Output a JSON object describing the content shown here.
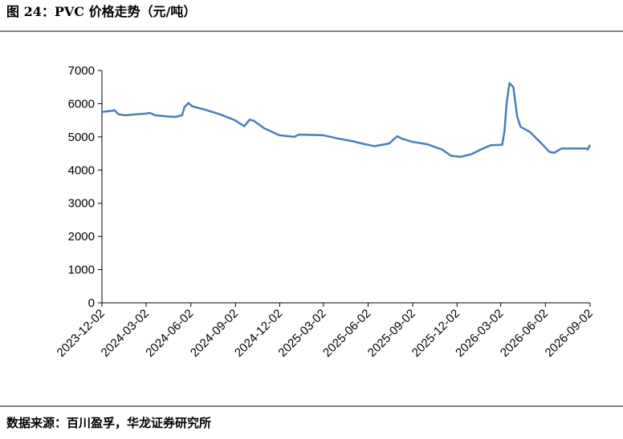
{
  "chart_data": {
    "type": "line",
    "title": "图 24：PVC 价格走势（元/吨）",
    "source": "数据来源：百川盈孚，华龙证券研究所",
    "x": [
      "2023-12-02",
      "2023-12-20",
      "2023-12-28",
      "2024-01-05",
      "2024-01-20",
      "2024-02-10",
      "2024-03-01",
      "2024-03-10",
      "2024-03-20",
      "2024-04-10",
      "2024-05-01",
      "2024-05-15",
      "2024-05-20",
      "2024-05-28",
      "2024-06-05",
      "2024-07-01",
      "2024-08-01",
      "2024-09-01",
      "2024-09-20",
      "2024-10-01",
      "2024-10-10",
      "2024-11-01",
      "2024-12-01",
      "2025-01-01",
      "2025-01-10",
      "2025-03-01",
      "2025-04-01",
      "2025-05-01",
      "2025-05-20",
      "2025-06-15",
      "2025-07-15",
      "2025-08-01",
      "2025-08-10",
      "2025-09-01",
      "2025-10-01",
      "2025-11-01",
      "2025-11-20",
      "2025-12-10",
      "2026-01-01",
      "2026-01-20",
      "2026-02-10",
      "2026-03-05",
      "2026-03-10",
      "2026-03-14",
      "2026-03-20",
      "2026-03-28",
      "2026-04-05",
      "2026-04-12",
      "2026-05-01",
      "2026-05-25",
      "2026-06-10",
      "2026-06-20",
      "2026-07-05",
      "2026-08-01",
      "2026-08-25",
      "2026-08-28",
      "2026-09-02"
    ],
    "series": [
      {
        "name": "PVC",
        "color": "#4a7ebb",
        "values": [
          5750,
          5780,
          5800,
          5680,
          5650,
          5680,
          5700,
          5720,
          5650,
          5620,
          5600,
          5650,
          5900,
          6020,
          5920,
          5820,
          5680,
          5500,
          5320,
          5520,
          5480,
          5250,
          5050,
          5000,
          5070,
          5050,
          4950,
          4870,
          4800,
          4720,
          4800,
          5020,
          4950,
          4850,
          4780,
          4620,
          4430,
          4400,
          4480,
          4620,
          4750,
          4760,
          5200,
          6000,
          6620,
          6500,
          5600,
          5300,
          5150,
          4800,
          4550,
          4520,
          4650,
          4650,
          4650,
          4620,
          4760
        ]
      }
    ],
    "xlim": [
      "2023-12-02",
      "2026-09-02"
    ],
    "xticks": [
      "2023-12-02",
      "2024-03-02",
      "2024-06-02",
      "2024-09-02",
      "2024-12-02",
      "2025-03-02",
      "2025-06-02",
      "2025-09-02",
      "2025-12-02",
      "2026-03-02",
      "2026-06-02",
      "2026-09-02"
    ],
    "ylim": [
      0,
      7000
    ],
    "yticks": [
      0,
      1000,
      2000,
      3000,
      4000,
      5000,
      6000,
      7000
    ],
    "grid": false
  }
}
